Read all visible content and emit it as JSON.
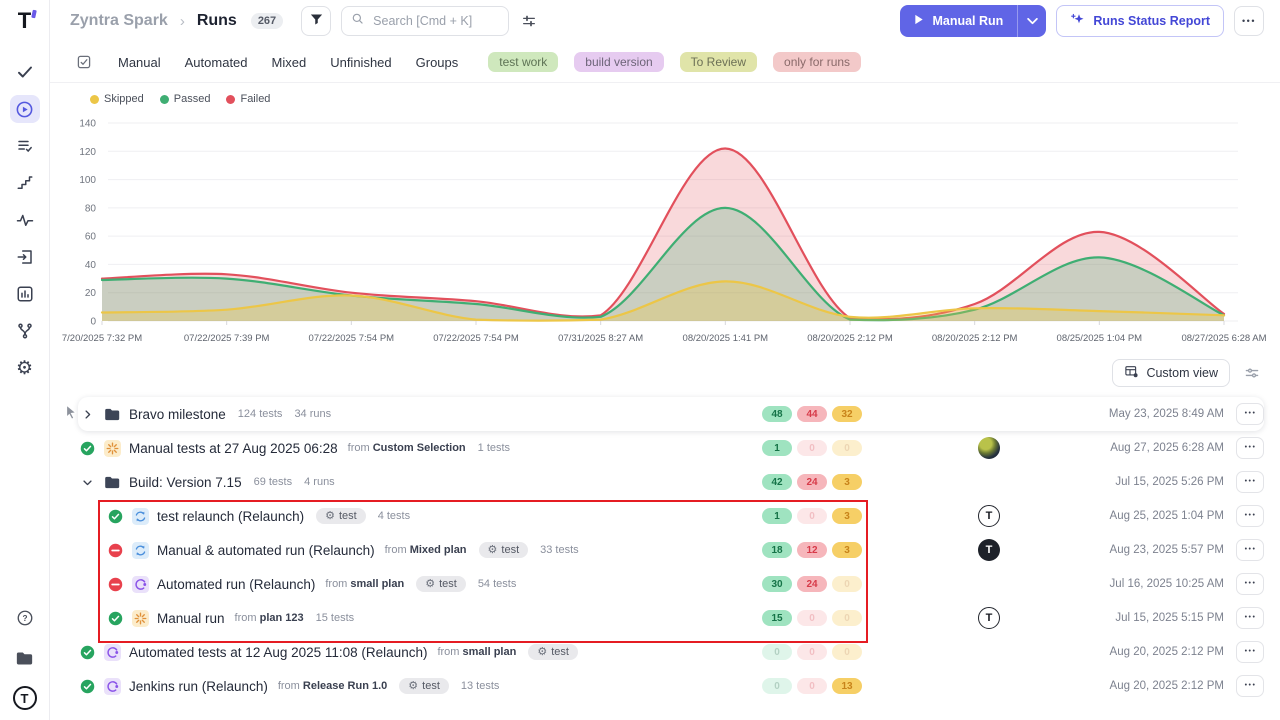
{
  "sidebar": {
    "logo": "T",
    "items": [
      "tests-check",
      "runs-play",
      "plans-list",
      "steps",
      "pulse",
      "import",
      "analytics",
      "branch",
      "settings"
    ],
    "active": "runs-play",
    "footer": [
      "help",
      "projects",
      "account"
    ]
  },
  "header": {
    "breadcrumb": {
      "project": "Zyntra Spark",
      "separator": "›",
      "section": "Runs",
      "count": "267"
    },
    "search_placeholder": "Search [Cmd + K]",
    "manual_run_label": "Manual Run",
    "runs_status_report_label": "Runs Status Report"
  },
  "tabs": {
    "items": [
      {
        "label": "Manual"
      },
      {
        "label": "Automated"
      },
      {
        "label": "Mixed"
      },
      {
        "label": "Unfinished"
      },
      {
        "label": "Groups"
      }
    ]
  },
  "filters": {
    "tags": [
      {
        "label": "test work",
        "bg": "#cfe8bd",
        "fg": "#5e7355"
      },
      {
        "label": "build version",
        "bg": "#e6cbf0",
        "fg": "#6d6478"
      },
      {
        "label": "To Review",
        "bg": "#e0e4a9",
        "fg": "#6d7156"
      },
      {
        "label": "only for runs",
        "bg": "#f3c9c9",
        "fg": "#8a6a6a"
      }
    ]
  },
  "chart_data": {
    "type": "area",
    "x_labels": [
      "7/20/2025 7:32 PM",
      "07/22/2025 7:39 PM",
      "07/22/2025 7:54 PM",
      "07/22/2025 7:54 PM",
      "07/31/2025 8:27 AM",
      "08/20/2025 1:41 PM",
      "08/20/2025 2:12 PM",
      "08/20/2025 2:12 PM",
      "08/25/2025 1:04 PM",
      "08/27/2025 6:28 AM"
    ],
    "series": [
      {
        "name": "Skipped",
        "color": "#ecc647",
        "fill": "rgba(236,198,71,0.30)",
        "values": [
          6,
          8,
          18,
          1,
          1,
          28,
          3,
          9,
          7,
          4
        ]
      },
      {
        "name": "Passed",
        "color": "#3fae73",
        "fill": "rgba(63,174,115,0.25)",
        "values": [
          29,
          30,
          18,
          12,
          3,
          80,
          1,
          8,
          45,
          4
        ]
      },
      {
        "name": "Failed",
        "color": "#e2505c",
        "fill": "rgba(226,80,92,0.22)",
        "values": [
          30,
          33,
          20,
          14,
          4,
          122,
          2,
          12,
          63,
          5
        ]
      }
    ],
    "draw_order": [
      "Failed",
      "Passed",
      "Skipped"
    ],
    "ylim": [
      0,
      140
    ],
    "yticks": [
      0,
      20,
      40,
      60,
      80,
      100,
      120,
      140
    ],
    "grid": true,
    "legend_position": "top-left"
  },
  "toolbar": {
    "custom_view_label": "Custom view"
  },
  "strings": {
    "from": "from"
  },
  "icons": {
    "gear": "⚙",
    "ellipsis": "•••",
    "help": "?"
  },
  "colors": {
    "accent": "#6065e6",
    "passed": "#27a45f",
    "failed": "#e8414d",
    "skipped": "#ecc647",
    "highlight_box": "#e51c23",
    "badge_green_bg": "#9fe3c0",
    "badge_green_fg": "#157347",
    "badge_red_bg": "#f6b6bb",
    "badge_red_fg": "#d73a49",
    "badge_amber_bg": "#f6cf66",
    "badge_amber_fg": "#c8831a"
  },
  "runs": [
    {
      "card": true,
      "indent": 0,
      "expander": "collapsed",
      "status": "",
      "type": "folder",
      "title": "Bravo milestone",
      "tests": "124 tests",
      "runs_count": "34 runs",
      "badges": [
        {
          "v": "48",
          "k": "green"
        },
        {
          "v": "44",
          "k": "red"
        },
        {
          "v": "32",
          "k": "amber"
        }
      ],
      "avatar": "",
      "date": "May 23, 2025 8:49 AM"
    },
    {
      "indent": 0,
      "status": "passed",
      "type": "manual",
      "title": "Manual tests at 27 Aug 2025 06:28",
      "from": "Custom Selection",
      "tests": "1 tests",
      "badges": [
        {
          "v": "1",
          "k": "green"
        },
        {
          "v": "0",
          "k": "red"
        },
        {
          "v": "0",
          "k": "amber"
        }
      ],
      "avatar": "photo",
      "date": "Aug 27, 2025 6:28 AM"
    },
    {
      "indent": 0,
      "expander": "expanded",
      "status": "",
      "type": "folder",
      "title": "Build: Version 7.15",
      "tests": "69 tests",
      "runs_count": "4 runs",
      "badges": [
        {
          "v": "42",
          "k": "green"
        },
        {
          "v": "24",
          "k": "red"
        },
        {
          "v": "3",
          "k": "amber"
        }
      ],
      "avatar": "",
      "date": "Jul 15, 2025 5:26 PM"
    },
    {
      "indent": 1,
      "status": "passed",
      "type": "relaunch",
      "title": "test relaunch (Relaunch)",
      "tag": "test",
      "tests": "4 tests",
      "badges": [
        {
          "v": "1",
          "k": "green"
        },
        {
          "v": "0",
          "k": "red"
        },
        {
          "v": "3",
          "k": "amber"
        }
      ],
      "avatar": "t-light",
      "date": "Aug 25, 2025 1:04 PM"
    },
    {
      "indent": 1,
      "status": "failed",
      "type": "relaunch",
      "title": "Manual & automated run (Relaunch)",
      "from": "Mixed plan",
      "tag": "test",
      "tests": "33 tests",
      "badges": [
        {
          "v": "18",
          "k": "green"
        },
        {
          "v": "12",
          "k": "red"
        },
        {
          "v": "3",
          "k": "amber"
        }
      ],
      "avatar": "t-dark",
      "date": "Aug 23, 2025 5:57 PM"
    },
    {
      "indent": 1,
      "status": "failed",
      "type": "automated",
      "title": "Automated run (Relaunch)",
      "from": "small plan",
      "tag": "test",
      "tests": "54 tests",
      "badges": [
        {
          "v": "30",
          "k": "green"
        },
        {
          "v": "24",
          "k": "red"
        },
        {
          "v": "0",
          "k": "amber"
        }
      ],
      "avatar": "",
      "date": "Jul 16, 2025 10:25 AM"
    },
    {
      "indent": 1,
      "status": "passed",
      "type": "manual",
      "title": "Manual run",
      "from": "plan 123",
      "tests": "15 tests",
      "badges": [
        {
          "v": "15",
          "k": "green"
        },
        {
          "v": "0",
          "k": "red"
        },
        {
          "v": "0",
          "k": "amber"
        }
      ],
      "avatar": "t-light",
      "date": "Jul 15, 2025 5:15 PM"
    },
    {
      "indent": 0,
      "status": "passed",
      "type": "automated",
      "title": "Automated tests at 12 Aug 2025 11:08 (Relaunch)",
      "from": "small plan",
      "tag": "test",
      "badges": [
        {
          "v": "0",
          "k": "green"
        },
        {
          "v": "0",
          "k": "red"
        },
        {
          "v": "0",
          "k": "amber"
        }
      ],
      "avatar": "",
      "date": "Aug 20, 2025 2:12 PM"
    },
    {
      "indent": 0,
      "status": "passed",
      "type": "automated",
      "title": "Jenkins run (Relaunch)",
      "from": "Release Run 1.0",
      "tag": "test",
      "tests": "13 tests",
      "badges": [
        {
          "v": "0",
          "k": "green"
        },
        {
          "v": "0",
          "k": "red"
        },
        {
          "v": "13",
          "k": "amber"
        }
      ],
      "avatar": "",
      "date": "Aug 20, 2025 2:12 PM"
    }
  ]
}
